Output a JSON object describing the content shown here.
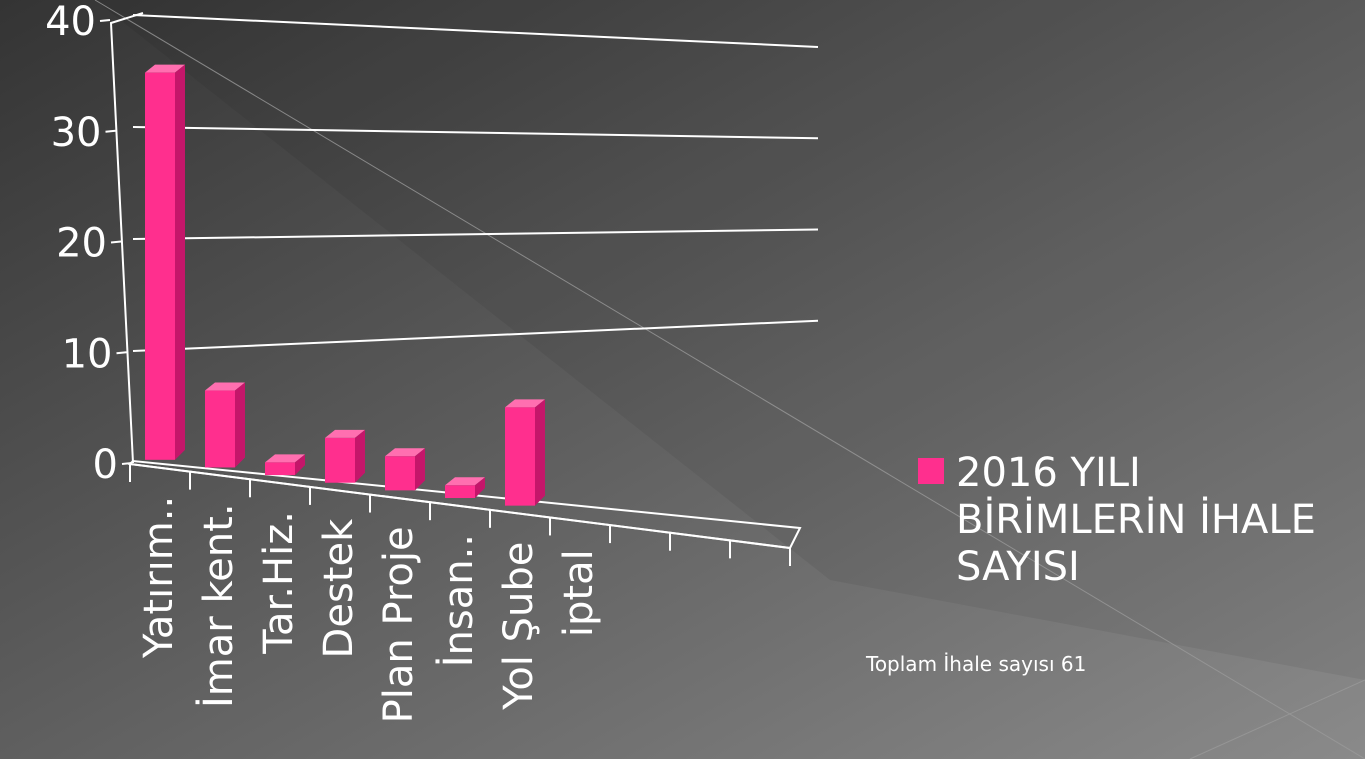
{
  "chart_data": {
    "type": "bar",
    "style": "3d",
    "categories": [
      "Yatırım..",
      "İmar kent.",
      "Tar.Hiz.",
      "Destek",
      "Plan Proje",
      "İnsan..",
      "Yol Şube",
      "iptal"
    ],
    "series": [
      {
        "name": "2016 YILI BİRİMLERİN İHALE SAYISI",
        "values": [
          36,
          7,
          1,
          4,
          3,
          1,
          9,
          0
        ]
      }
    ],
    "yticks": [
      "0",
      "10",
      "20",
      "30",
      "40"
    ],
    "ylim": [
      0,
      40
    ],
    "grid": true,
    "legend_position": "right",
    "bar_color": "#ff2f8e"
  },
  "note": "Toplam İhale sayısı 61",
  "colors": {
    "background_light": "#7b7b7b",
    "background_dark": "#3e3e3e",
    "axis": "#ffffff",
    "text": "#ffffff"
  }
}
